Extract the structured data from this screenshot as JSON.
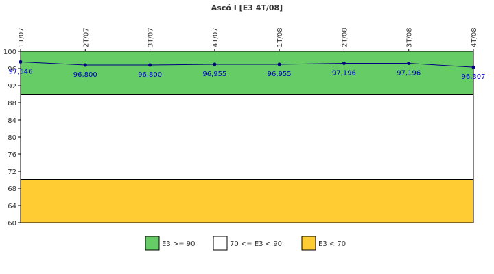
{
  "chart_data": {
    "type": "line",
    "title": "Ascó I [E3 4T/08]",
    "categories": [
      "1T/07",
      "2T/07",
      "3T/07",
      "4T/07",
      "1T/08",
      "2T/08",
      "3T/08",
      "4T/08"
    ],
    "series": [
      {
        "values": [
          97.546,
          96.8,
          96.8,
          96.955,
          96.955,
          97.196,
          97.196,
          96.307
        ],
        "labels": [
          "97,546",
          "96,800",
          "96,800",
          "96,955",
          "96,955",
          "97,196",
          "97,196",
          "96,307"
        ],
        "color": "#000080"
      }
    ],
    "ylim": [
      60,
      100
    ],
    "yticks": [
      60,
      64,
      68,
      72,
      76,
      80,
      84,
      88,
      92,
      96,
      100
    ],
    "bands": [
      {
        "from": 90,
        "to": 100,
        "color": "#66cc66",
        "label": "E3 >= 90"
      },
      {
        "from": 70,
        "to": 90,
        "color": "#ffffff",
        "label": "70 <= E3 < 90"
      },
      {
        "from": 60,
        "to": 70,
        "color": "#ffcc33",
        "label": "E3 < 70"
      }
    ],
    "legend_position": "bottom",
    "grid": false
  }
}
